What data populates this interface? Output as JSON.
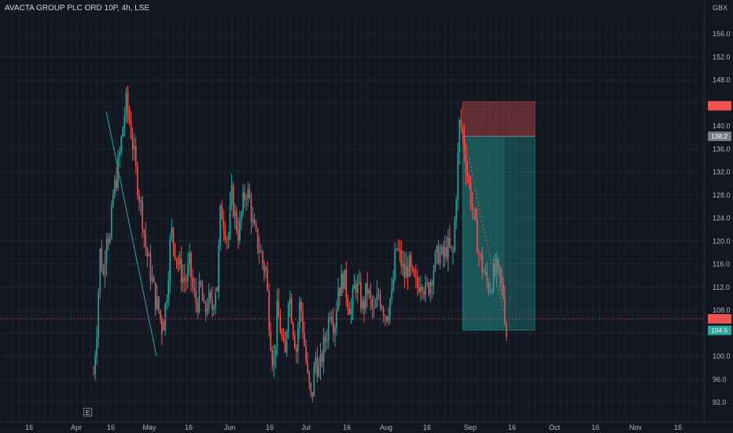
{
  "header": {
    "title": "AVACTA GROUP PLC ORD 10P, 4h, LSE",
    "currency": "GBX"
  },
  "toolbar": {
    "e_label": "E"
  },
  "chart_data": {
    "type": "candlestick",
    "title": "AVACTA GROUP PLC ORD 10P, 4h, LSE",
    "ylim": [
      90,
      158
    ],
    "yticks": [
      92.0,
      96.0,
      100.0,
      104.0,
      108.0,
      112.0,
      116.0,
      120.0,
      124.0,
      128.0,
      132.0,
      136.0,
      140.0,
      144.0,
      148.0,
      152.0,
      156.0
    ],
    "ytick_labels": [
      "92.0",
      "96.0",
      "100.0",
      "",
      "108.0",
      "112.0",
      "116.0",
      "120.0",
      "124.0",
      "128.0",
      "132.0",
      "136.0",
      "140.0",
      "",
      "148.0",
      "152.0",
      "156.0"
    ],
    "xtick_labels": [
      "16",
      "Apr",
      "16",
      "May",
      "16",
      "Jun",
      "16",
      "Jul",
      "16",
      "Aug",
      "16",
      "Sep",
      "16",
      "Oct",
      "16",
      "Nov",
      "16"
    ],
    "grid": true,
    "colors": {
      "up": "#26a69a",
      "down": "#ef5350",
      "target": "#26a69a",
      "stop": "#ef5350"
    },
    "current_price": 106.5,
    "price_labels": [
      {
        "value": 143.5,
        "label": "",
        "color": "#ef5350"
      },
      {
        "value": 138.2,
        "label": "138.2",
        "color": "#787b86"
      },
      {
        "value": 106.5,
        "label": "",
        "color": "#ef5350"
      },
      {
        "value": 104.5,
        "label": "104.5",
        "color": "#26a69a"
      }
    ],
    "position": {
      "entry": 138.2,
      "stop": 144.2,
      "target": 104.5
    },
    "trendline": [
      [
        135.0,
        142.5
      ],
      [
        199.0,
        100.0
      ]
    ],
    "series": [
      {
        "name": "AVACTA",
        "segments": [
          {
            "x_start": 119,
            "x_end": 208,
            "prices": [
              97,
              105,
              118,
              114,
              122,
              120,
              128,
              131,
              135,
              140,
              144,
              141,
              137,
              132,
              128,
              124,
              119,
              116,
              113,
              110,
              108,
              105
            ]
          },
          {
            "x_start": 208,
            "x_end": 276,
            "prices": [
              106,
              112,
              122,
              119,
              116,
              114,
              113,
              116,
              111,
              109,
              112,
              107,
              110,
              108,
              112
            ]
          },
          {
            "x_start": 276,
            "x_end": 338,
            "prices": [
              112,
              126,
              123,
              120,
              128,
              124,
              121,
              126,
              129,
              127,
              122,
              120,
              118,
              115
            ]
          },
          {
            "x_start": 338,
            "x_end": 432,
            "prices": [
              115,
              105,
              98,
              108,
              104,
              99,
              112,
              106,
              101,
              110,
              103,
              96,
              92,
              100,
              97,
              101,
              104,
              109,
              105,
              112
            ]
          },
          {
            "x_start": 432,
            "x_end": 498,
            "prices": [
              112,
              114,
              110,
              108,
              113,
              111,
              108,
              112,
              109,
              107,
              111,
              109,
              107,
              110
            ]
          },
          {
            "x_start": 498,
            "x_end": 576,
            "prices": [
              110,
              119,
              117,
              114,
              116,
              113,
              112,
              114,
              111,
              113,
              116,
              118,
              117,
              119,
              118
            ]
          },
          {
            "x_start": 576,
            "x_end": 646,
            "prices": [
              118,
              129,
              141,
              138,
              133,
              129,
              125,
              121,
              117,
              115,
              113,
              112,
              114,
              115,
              113,
              111,
              104
            ]
          }
        ]
      }
    ]
  }
}
